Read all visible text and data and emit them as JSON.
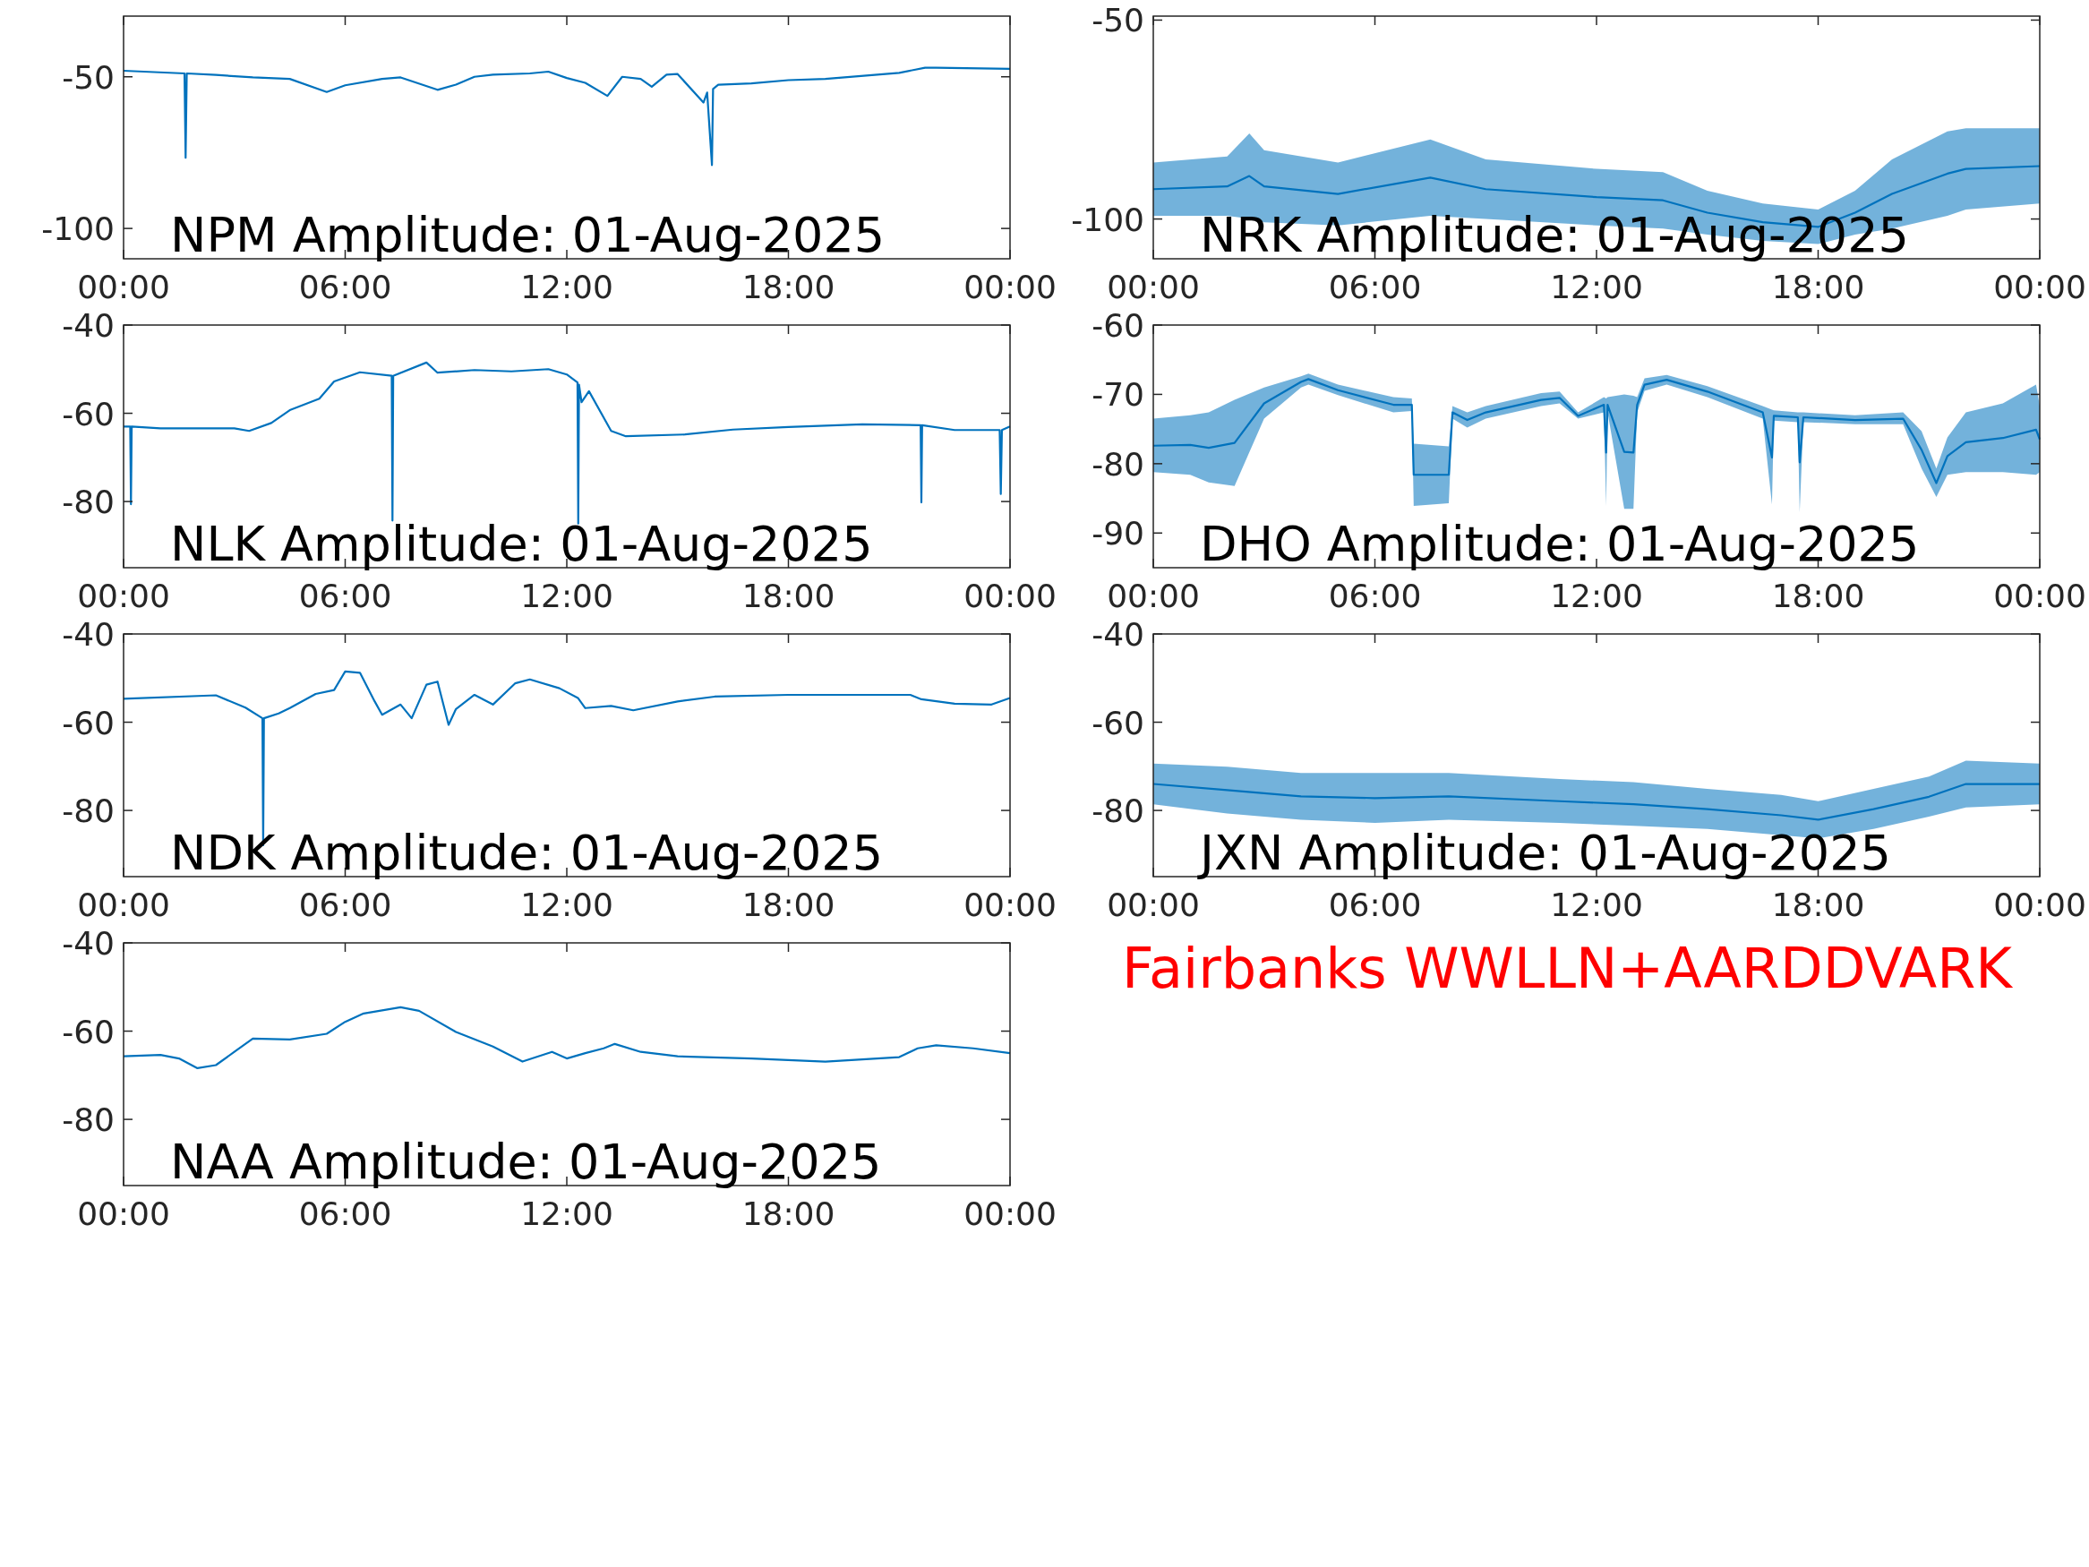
{
  "chart_data": [
    {
      "type": "line",
      "title": "NPM Amplitude: 01-Aug-2025",
      "xlim": [
        0,
        24
      ],
      "xticks": [
        {
          "value": 0,
          "label": "00:00"
        },
        {
          "value": 6,
          "label": "06:00"
        },
        {
          "value": 12,
          "label": "12:00"
        },
        {
          "value": 18,
          "label": "18:00"
        },
        {
          "value": 24,
          "label": "00:00"
        }
      ],
      "ylim": [
        -110,
        -30
      ],
      "yticks": [
        -100,
        -50
      ],
      "series": [
        {
          "color": "#0072bd",
          "x": [
            0,
            1.65,
            1.68,
            1.71,
            2.5,
            3.5,
            4.5,
            5.5,
            6,
            7,
            7.5,
            8.5,
            9,
            9.5,
            10,
            11,
            11.5,
            12,
            12.5,
            13.1,
            13.5,
            14,
            14.3,
            14.7,
            15,
            15.7,
            15.8,
            15.93,
            15.96,
            16.1,
            17,
            18,
            19,
            21,
            21.7,
            22,
            24
          ],
          "values": [
            -48,
            -48.9,
            -76.7,
            -48.9,
            -49.4,
            -50.2,
            -50.7,
            -55,
            -52.8,
            -50.7,
            -50.2,
            -54.3,
            -52.6,
            -50,
            -49.3,
            -48.9,
            -48.3,
            -50.4,
            -52,
            -56.3,
            -50,
            -50.7,
            -53.3,
            -49.3,
            -49.1,
            -58.5,
            -55.2,
            -79.1,
            -54,
            -52.6,
            -52.2,
            -51.1,
            -50.7,
            -48.7,
            -47,
            -47,
            -47.4
          ]
        }
      ]
    },
    {
      "type": "line",
      "title": "NRK Amplitude: 01-Aug-2025",
      "xlim": [
        0,
        24
      ],
      "xticks": [
        {
          "value": 0,
          "label": "00:00"
        },
        {
          "value": 6,
          "label": "06:00"
        },
        {
          "value": 12,
          "label": "12:00"
        },
        {
          "value": 18,
          "label": "18:00"
        },
        {
          "value": 24,
          "label": "00:00"
        }
      ],
      "ylim": [
        -110,
        -49
      ],
      "yticks": [
        -100,
        -50
      ],
      "series": [
        {
          "color": "#0072bd",
          "x": [
            0,
            2,
            2.6,
            3,
            5,
            7.5,
            9,
            12,
            13.8,
            15,
            16.5,
            18,
            19,
            20,
            21.5,
            22,
            24
          ],
          "values": [
            -92.5,
            -91.8,
            -89.2,
            -91.8,
            -93.7,
            -89.6,
            -92.5,
            -94.5,
            -95.3,
            -98.4,
            -100.8,
            -102,
            -98.4,
            -93.7,
            -88.6,
            -87.4,
            -86.7
          ],
          "upper": [
            -85.8,
            -84.3,
            -78.5,
            -82.7,
            -85.8,
            -80,
            -85,
            -87.4,
            -88.2,
            -92.9,
            -96.1,
            -97.6,
            -92.9,
            -85,
            -78,
            -77.2,
            -77.2
          ],
          "lower": [
            -99.2,
            -99.2,
            -99.9,
            -100.8,
            -101.6,
            -99.2,
            -100,
            -101.6,
            -102.4,
            -103.9,
            -105.5,
            -106.3,
            -103.9,
            -102.4,
            -99.2,
            -97.6,
            -96.1
          ]
        }
      ]
    },
    {
      "type": "line",
      "title": "NLK Amplitude: 01-Aug-2025",
      "xlim": [
        0,
        24
      ],
      "xticks": [
        {
          "value": 0,
          "label": "00:00"
        },
        {
          "value": 6,
          "label": "06:00"
        },
        {
          "value": 12,
          "label": "12:00"
        },
        {
          "value": 18,
          "label": "18:00"
        },
        {
          "value": 24,
          "label": "00:00"
        }
      ],
      "ylim": [
        -95,
        -40
      ],
      "yticks": [
        -80,
        -60,
        -40
      ],
      "series": [
        {
          "color": "#0072bd",
          "x": [
            0,
            0.18,
            0.2,
            0.22,
            1,
            3,
            3.4,
            4,
            4.5,
            5.3,
            5.7,
            6.4,
            7.26,
            7.28,
            7.3,
            8.2,
            8.5,
            9.5,
            10.5,
            11.5,
            12,
            12.29,
            12.31,
            12.33,
            12.4,
            12.6,
            13.2,
            13.6,
            15.2,
            16.5,
            18,
            20,
            21.58,
            21.6,
            21.62,
            22.5,
            23.72,
            23.75,
            23.78,
            24
          ],
          "values": [
            -63,
            -63,
            -80.6,
            -63,
            -63.4,
            -63.4,
            -64,
            -62.2,
            -59.3,
            -56.7,
            -52.8,
            -50.7,
            -51.5,
            -84.3,
            -51.5,
            -48.5,
            -50.8,
            -50.2,
            -50.5,
            -50,
            -51.2,
            -53,
            -85,
            -53.5,
            -57.5,
            -55,
            -64,
            -65.2,
            -64.8,
            -63.7,
            -63.1,
            -62.5,
            -62.7,
            -80.2,
            -62.7,
            -63.8,
            -63.8,
            -78.3,
            -63.8,
            -63
          ]
        }
      ]
    },
    {
      "type": "line",
      "title": "DHO Amplitude: 01-Aug-2025",
      "xlim": [
        0,
        24
      ],
      "xticks": [
        {
          "value": 0,
          "label": "00:00"
        },
        {
          "value": 6,
          "label": "06:00"
        },
        {
          "value": 12,
          "label": "12:00"
        },
        {
          "value": 18,
          "label": "18:00"
        },
        {
          "value": 24,
          "label": "00:00"
        }
      ],
      "ylim": [
        -95,
        -60
      ],
      "yticks": [
        -90,
        -80,
        -70,
        -60
      ],
      "series": [
        {
          "color": "#0072bd",
          "x": [
            0,
            1,
            1.5,
            2.2,
            3,
            4,
            4.2,
            5,
            6.5,
            7,
            7.05,
            8,
            8.1,
            8.5,
            9,
            10.5,
            11,
            11.5,
            12.2,
            12.26,
            12.3,
            12.75,
            13,
            13.1,
            13.3,
            13.9,
            15,
            16.5,
            16.75,
            16.8,
            17.45,
            17.5,
            17.6,
            19,
            20.3,
            20.8,
            21.2,
            21.5,
            22,
            23,
            23.9,
            24
          ],
          "values": [
            -77.4,
            -77.3,
            -77.7,
            -77,
            -71.3,
            -68.2,
            -67.8,
            -69.4,
            -71.5,
            -71.5,
            -81.6,
            -81.6,
            -72.6,
            -73.7,
            -72.6,
            -70.8,
            -70.5,
            -73.1,
            -71.5,
            -78.4,
            -71.5,
            -78.3,
            -78.4,
            -71.5,
            -68.6,
            -67.9,
            -69.6,
            -72.6,
            -79.1,
            -73.1,
            -73.3,
            -79.8,
            -73.3,
            -73.7,
            -73.5,
            -78,
            -82.8,
            -78.9,
            -76.9,
            -76.3,
            -75.1,
            -76.5
          ],
          "upper": [
            -73.5,
            -73,
            -72.6,
            -70.8,
            -69,
            -67.4,
            -67,
            -68.6,
            -70.4,
            -70.6,
            -77.1,
            -77.5,
            -71.7,
            -72.6,
            -71.7,
            -69.8,
            -69.6,
            -72.6,
            -70.4,
            -70.6,
            -70.4,
            -70,
            -70.2,
            -70.4,
            -67.7,
            -67.2,
            -68.8,
            -71.7,
            -72.2,
            -72.3,
            -72.6,
            -72.6,
            -72.6,
            -73,
            -72.6,
            -75.3,
            -80.7,
            -76.2,
            -72.6,
            -71.3,
            -68.6,
            -71.7
          ],
          "lower": [
            -81.2,
            -81.6,
            -82.7,
            -83.2,
            -73.5,
            -69,
            -68.6,
            -70.1,
            -72.6,
            -72.4,
            -86.1,
            -85.7,
            -73.5,
            -74.8,
            -73.5,
            -71.7,
            -71.3,
            -73.5,
            -72.6,
            -86.1,
            -72.6,
            -86.5,
            -86.5,
            -72.6,
            -69.5,
            -68.6,
            -70.4,
            -73.5,
            -85.9,
            -73.8,
            -74,
            -87,
            -74,
            -74.3,
            -74.3,
            -80.7,
            -84.8,
            -81.6,
            -81.2,
            -81.2,
            -81.6,
            -81.2
          ]
        }
      ]
    },
    {
      "type": "line",
      "title": "NDK Amplitude: 01-Aug-2025",
      "xlim": [
        0,
        24
      ],
      "xticks": [
        {
          "value": 0,
          "label": "00:00"
        },
        {
          "value": 6,
          "label": "06:00"
        },
        {
          "value": 12,
          "label": "12:00"
        },
        {
          "value": 18,
          "label": "18:00"
        },
        {
          "value": 24,
          "label": "00:00"
        }
      ],
      "ylim": [
        -95,
        -40
      ],
      "yticks": [
        -80,
        -60,
        -40
      ],
      "series": [
        {
          "color": "#0072bd",
          "x": [
            0,
            2.5,
            3.3,
            3.76,
            3.78,
            3.8,
            4.2,
            4.5,
            5.2,
            5.7,
            6,
            6.4,
            6.8,
            7,
            7.5,
            7.8,
            8.2,
            8.5,
            8.8,
            9,
            9.5,
            10,
            10.6,
            11,
            11.8,
            12.3,
            12.5,
            13.2,
            13.8,
            15,
            16,
            18,
            21.3,
            21.6,
            22.5,
            23.5,
            24
          ],
          "values": [
            -54.7,
            -53.9,
            -56.7,
            -59.1,
            -87.9,
            -59.1,
            -58,
            -56.8,
            -53.6,
            -52.7,
            -48.5,
            -48.8,
            -55.3,
            -58.3,
            -56,
            -59.1,
            -51.5,
            -50.8,
            -60.6,
            -57,
            -53.8,
            -56,
            -51.2,
            -50.3,
            -52.3,
            -54.5,
            -56.8,
            -56.3,
            -57.3,
            -55.3,
            -54.2,
            -53.8,
            -53.8,
            -54.8,
            -55.8,
            -56,
            -54.5
          ]
        }
      ]
    },
    {
      "type": "line",
      "title": "JXN Amplitude: 01-Aug-2025",
      "xlim": [
        0,
        24
      ],
      "xticks": [
        {
          "value": 0,
          "label": "00:00"
        },
        {
          "value": 6,
          "label": "06:00"
        },
        {
          "value": 12,
          "label": "12:00"
        },
        {
          "value": 18,
          "label": "18:00"
        },
        {
          "value": 24,
          "label": "00:00"
        }
      ],
      "ylim": [
        -95,
        -40
      ],
      "yticks": [
        -80,
        -60,
        -40
      ],
      "series": [
        {
          "color": "#0072bd",
          "x": [
            0,
            2,
            4,
            6,
            8,
            11,
            13,
            15,
            17,
            18,
            19.5,
            21,
            22,
            24
          ],
          "values": [
            -74,
            -75.4,
            -76.8,
            -77.2,
            -76.8,
            -77.9,
            -78.6,
            -79.7,
            -81.1,
            -82.1,
            -79.7,
            -76.9,
            -74,
            -74
          ],
          "upper": [
            -69.4,
            -70.1,
            -71.5,
            -71.5,
            -71.5,
            -72.9,
            -73.6,
            -75.1,
            -76.5,
            -77.9,
            -75.1,
            -72.3,
            -68.7,
            -69.4
          ],
          "lower": [
            -78.6,
            -80.7,
            -82.1,
            -82.8,
            -82.1,
            -82.8,
            -83.5,
            -84.2,
            -85.6,
            -86.3,
            -84.2,
            -81.4,
            -79.3,
            -78.6
          ]
        }
      ]
    },
    {
      "type": "line",
      "title": "NAA Amplitude: 01-Aug-2025",
      "xlim": [
        0,
        24
      ],
      "xticks": [
        {
          "value": 0,
          "label": "00:00"
        },
        {
          "value": 6,
          "label": "06:00"
        },
        {
          "value": 12,
          "label": "12:00"
        },
        {
          "value": 18,
          "label": "18:00"
        },
        {
          "value": 24,
          "label": "00:00"
        }
      ],
      "ylim": [
        -95,
        -40
      ],
      "yticks": [
        -80,
        -60,
        -40
      ],
      "series": [
        {
          "color": "#0072bd",
          "x": [
            0,
            1,
            1.5,
            2,
            2.5,
            3,
            3.5,
            4.5,
            5.5,
            6,
            6.5,
            7.5,
            8,
            9,
            10,
            10.8,
            11.6,
            12,
            12.5,
            13,
            13.3,
            14,
            15,
            17,
            19,
            21,
            21.5,
            22,
            23,
            24
          ],
          "values": [
            -65.7,
            -65.4,
            -66.2,
            -68.4,
            -67.7,
            -64.7,
            -61.7,
            -61.9,
            -60.6,
            -57.9,
            -56,
            -54.6,
            -55.4,
            -60.2,
            -63.5,
            -66.9,
            -64.7,
            -66.2,
            -65,
            -63.9,
            -62.9,
            -64.7,
            -65.7,
            -66.2,
            -66.9,
            -65.9,
            -63.9,
            -63.2,
            -63.9,
            -65
          ]
        }
      ]
    },
    {
      "type": "other",
      "title": "Fairbanks WWLLN+AARDDVARK"
    }
  ]
}
